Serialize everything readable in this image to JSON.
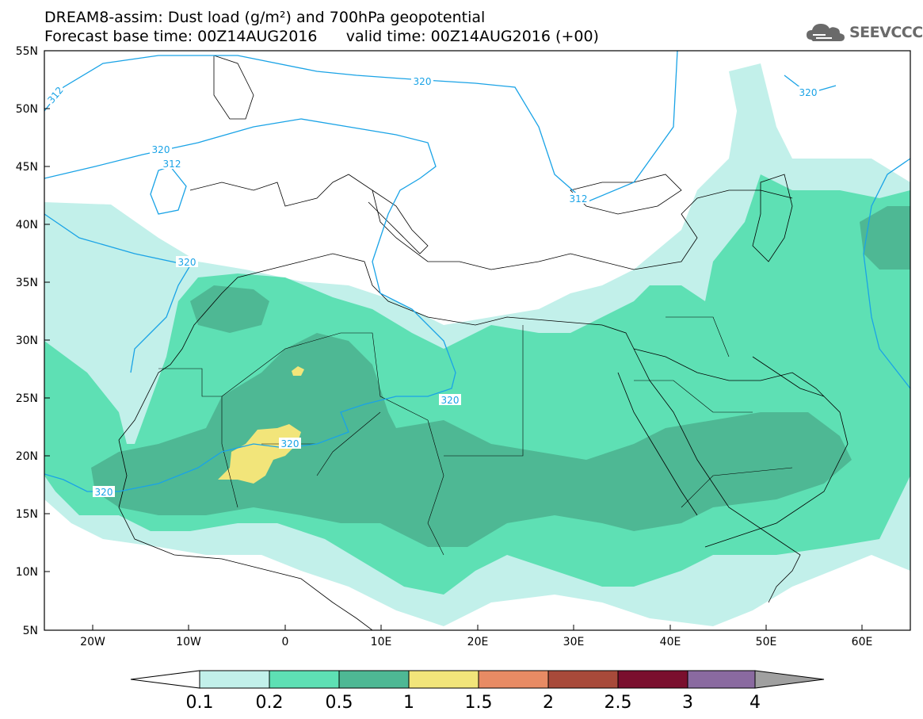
{
  "title_line1": "DREAM8-assim: Dust load (g/m²) and 700hPa geopotential",
  "title_line2": "Forecast base time: 00Z14AUG2016      valid time: 00Z14AUG2016 (+00)",
  "logo_text": "SEEVCCC",
  "lat_labels": [
    "55N",
    "50N",
    "45N",
    "40N",
    "35N",
    "30N",
    "25N",
    "20N",
    "15N",
    "10N",
    "5N"
  ],
  "lon_labels": [
    "20W",
    "10W",
    "0",
    "10E",
    "20E",
    "30E",
    "40E",
    "50E",
    "60E"
  ],
  "contour_labels": [
    "312",
    "320",
    "320",
    "312",
    "312",
    "320",
    "320",
    "320",
    "320",
    "320"
  ],
  "colorbar": {
    "ticks": [
      "0.1",
      "0.2",
      "0.5",
      "1",
      "1.5",
      "2",
      "2.5",
      "3",
      "4"
    ],
    "colors": [
      "#c2f0ea",
      "#5ee0b4",
      "#4eb894",
      "#f2e57a",
      "#e88b64",
      "#a84a3a",
      "#7a0f2e",
      "#8a6aa0"
    ],
    "under_color": "#ffffff",
    "over_color": "#a0a0a0"
  },
  "colors": {
    "contour": "#1aa3e6",
    "dust_light": "#c2f0ea",
    "dust_mid": "#5ee0b4",
    "dust_dark": "#4eb894",
    "dust_yellow": "#f2e57a"
  }
}
